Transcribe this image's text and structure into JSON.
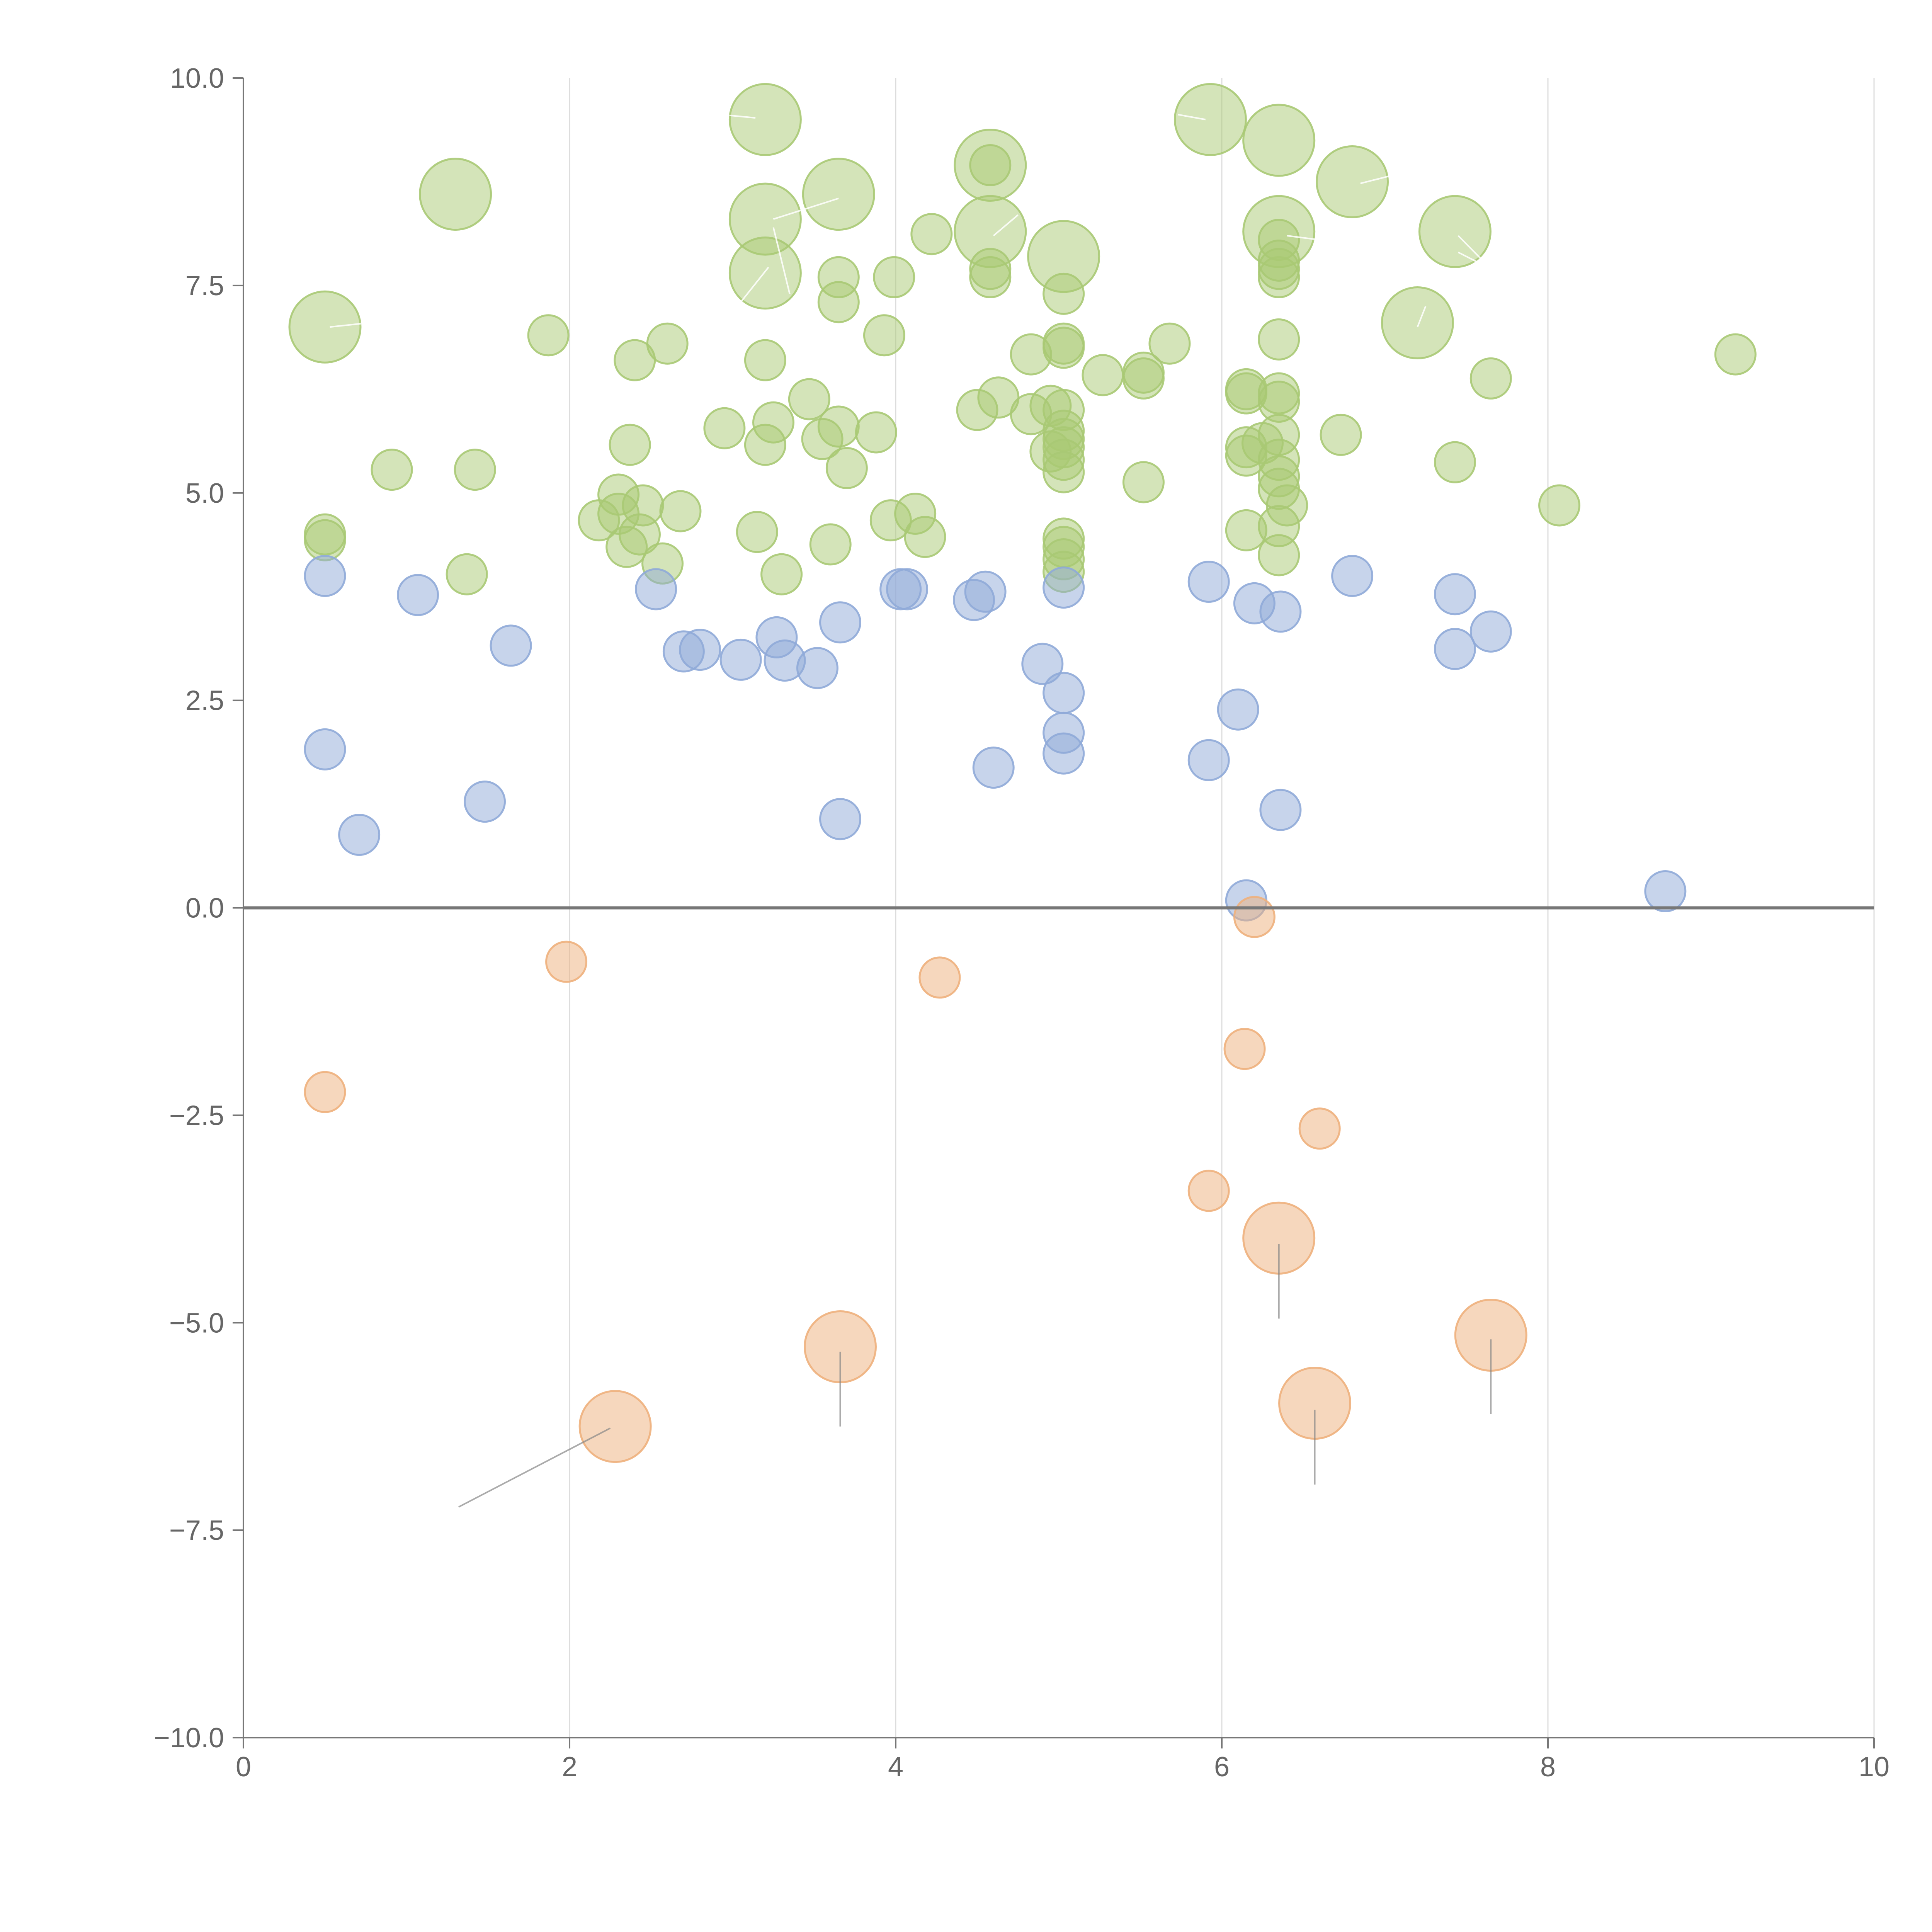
{
  "chart_data": {
    "type": "scatter",
    "title": "",
    "xlabel": "",
    "ylabel": "",
    "xlim": [
      0,
      10
    ],
    "ylim": [
      -10,
      10
    ],
    "xticks": [
      0,
      2,
      4,
      6,
      8,
      10
    ],
    "yticks": [
      -10,
      -7.5,
      -5,
      -2.5,
      0,
      2.5,
      5,
      7.5,
      10
    ],
    "xtick_labels": [
      "0",
      "2",
      "4",
      "6",
      "8",
      "10"
    ],
    "ytick_labels": [
      "−10.0",
      "−7.5",
      "−5.0",
      "−2.5",
      "0.0",
      "2.5",
      "5.0",
      "7.5",
      "10.0"
    ],
    "grid": {
      "x": true,
      "y": false
    },
    "reference_line": {
      "y": 0
    },
    "bubble_sizes": {
      "small": 1,
      "large": 2
    },
    "series": [
      {
        "name": "green",
        "color": "#a9c974",
        "points": [
          {
            "x": 3.2,
            "y": 9.5,
            "s": 2
          },
          {
            "x": 5.93,
            "y": 9.5,
            "s": 2
          },
          {
            "x": 6.35,
            "y": 9.25,
            "s": 2
          },
          {
            "x": 1.3,
            "y": 8.6,
            "s": 2
          },
          {
            "x": 3.65,
            "y": 8.6,
            "s": 2
          },
          {
            "x": 4.58,
            "y": 8.95,
            "s": 2
          },
          {
            "x": 4.58,
            "y": 8.95,
            "s": 1
          },
          {
            "x": 6.8,
            "y": 8.75,
            "s": 2
          },
          {
            "x": 3.2,
            "y": 8.3,
            "s": 2
          },
          {
            "x": 4.58,
            "y": 8.15,
            "s": 2
          },
          {
            "x": 6.35,
            "y": 8.15,
            "s": 2
          },
          {
            "x": 7.43,
            "y": 8.15,
            "s": 2
          },
          {
            "x": 5.03,
            "y": 7.85,
            "s": 2
          },
          {
            "x": 3.2,
            "y": 7.65,
            "s": 2
          },
          {
            "x": 0.5,
            "y": 7.0,
            "s": 2
          },
          {
            "x": 7.2,
            "y": 7.05,
            "s": 2
          },
          {
            "x": 4.22,
            "y": 8.12,
            "s": 1
          },
          {
            "x": 6.35,
            "y": 8.05,
            "s": 1
          },
          {
            "x": 3.65,
            "y": 7.6,
            "s": 1
          },
          {
            "x": 3.99,
            "y": 7.6,
            "s": 1
          },
          {
            "x": 4.58,
            "y": 7.6,
            "s": 1
          },
          {
            "x": 4.58,
            "y": 7.7,
            "s": 1
          },
          {
            "x": 6.35,
            "y": 7.6,
            "s": 1
          },
          {
            "x": 6.35,
            "y": 7.7,
            "s": 1
          },
          {
            "x": 6.35,
            "y": 7.8,
            "s": 1
          },
          {
            "x": 5.03,
            "y": 7.4,
            "s": 1
          },
          {
            "x": 3.65,
            "y": 7.3,
            "s": 1
          },
          {
            "x": 1.87,
            "y": 6.9,
            "s": 1
          },
          {
            "x": 3.93,
            "y": 6.9,
            "s": 1
          },
          {
            "x": 2.6,
            "y": 6.8,
            "s": 1
          },
          {
            "x": 5.03,
            "y": 6.8,
            "s": 1
          },
          {
            "x": 5.03,
            "y": 6.75,
            "s": 1
          },
          {
            "x": 5.68,
            "y": 6.8,
            "s": 1
          },
          {
            "x": 6.35,
            "y": 6.85,
            "s": 1
          },
          {
            "x": 9.15,
            "y": 6.67,
            "s": 1
          },
          {
            "x": 4.83,
            "y": 6.67,
            "s": 1
          },
          {
            "x": 2.4,
            "y": 6.6,
            "s": 1
          },
          {
            "x": 3.2,
            "y": 6.6,
            "s": 1
          },
          {
            "x": 5.27,
            "y": 6.42,
            "s": 1
          },
          {
            "x": 5.52,
            "y": 6.45,
            "s": 1
          },
          {
            "x": 5.52,
            "y": 6.38,
            "s": 1
          },
          {
            "x": 7.65,
            "y": 6.38,
            "s": 1
          },
          {
            "x": 6.15,
            "y": 6.25,
            "s": 1
          },
          {
            "x": 6.15,
            "y": 6.2,
            "s": 1
          },
          {
            "x": 6.35,
            "y": 6.2,
            "s": 1
          },
          {
            "x": 6.35,
            "y": 6.1,
            "s": 1
          },
          {
            "x": 3.47,
            "y": 6.13,
            "s": 1
          },
          {
            "x": 4.63,
            "y": 6.15,
            "s": 1
          },
          {
            "x": 4.5,
            "y": 6.0,
            "s": 1
          },
          {
            "x": 4.95,
            "y": 6.05,
            "s": 1
          },
          {
            "x": 5.03,
            "y": 6.0,
            "s": 1
          },
          {
            "x": 4.83,
            "y": 5.95,
            "s": 1
          },
          {
            "x": 3.25,
            "y": 5.85,
            "s": 1
          },
          {
            "x": 2.95,
            "y": 5.78,
            "s": 1
          },
          {
            "x": 3.65,
            "y": 5.8,
            "s": 1
          },
          {
            "x": 3.88,
            "y": 5.73,
            "s": 1
          },
          {
            "x": 6.35,
            "y": 5.7,
            "s": 1
          },
          {
            "x": 6.73,
            "y": 5.7,
            "s": 1
          },
          {
            "x": 5.03,
            "y": 5.75,
            "s": 1
          },
          {
            "x": 5.03,
            "y": 5.65,
            "s": 1
          },
          {
            "x": 5.03,
            "y": 5.55,
            "s": 1
          },
          {
            "x": 3.55,
            "y": 5.65,
            "s": 1
          },
          {
            "x": 2.37,
            "y": 5.58,
            "s": 1
          },
          {
            "x": 3.2,
            "y": 5.58,
            "s": 1
          },
          {
            "x": 6.25,
            "y": 5.6,
            "s": 1
          },
          {
            "x": 6.15,
            "y": 5.55,
            "s": 1
          },
          {
            "x": 6.15,
            "y": 5.45,
            "s": 1
          },
          {
            "x": 4.95,
            "y": 5.5,
            "s": 1
          },
          {
            "x": 5.03,
            "y": 5.4,
            "s": 1
          },
          {
            "x": 6.35,
            "y": 5.4,
            "s": 1
          },
          {
            "x": 7.43,
            "y": 5.37,
            "s": 1
          },
          {
            "x": 3.7,
            "y": 5.3,
            "s": 1
          },
          {
            "x": 5.03,
            "y": 5.25,
            "s": 1
          },
          {
            "x": 0.91,
            "y": 5.28,
            "s": 1
          },
          {
            "x": 1.42,
            "y": 5.28,
            "s": 1
          },
          {
            "x": 6.35,
            "y": 5.2,
            "s": 1
          },
          {
            "x": 5.52,
            "y": 5.13,
            "s": 1
          },
          {
            "x": 6.35,
            "y": 5.05,
            "s": 1
          },
          {
            "x": 2.3,
            "y": 4.98,
            "s": 1
          },
          {
            "x": 2.45,
            "y": 4.85,
            "s": 1
          },
          {
            "x": 6.4,
            "y": 4.85,
            "s": 1
          },
          {
            "x": 8.07,
            "y": 4.85,
            "s": 1
          },
          {
            "x": 2.3,
            "y": 4.75,
            "s": 1
          },
          {
            "x": 2.18,
            "y": 4.67,
            "s": 1
          },
          {
            "x": 2.68,
            "y": 4.78,
            "s": 1
          },
          {
            "x": 3.97,
            "y": 4.67,
            "s": 1
          },
          {
            "x": 4.12,
            "y": 4.75,
            "s": 1
          },
          {
            "x": 6.35,
            "y": 4.6,
            "s": 1
          },
          {
            "x": 3.15,
            "y": 4.53,
            "s": 1
          },
          {
            "x": 6.15,
            "y": 4.55,
            "s": 1
          },
          {
            "x": 0.5,
            "y": 4.5,
            "s": 1
          },
          {
            "x": 0.5,
            "y": 4.43,
            "s": 1
          },
          {
            "x": 2.43,
            "y": 4.5,
            "s": 1
          },
          {
            "x": 4.18,
            "y": 4.47,
            "s": 1
          },
          {
            "x": 5.03,
            "y": 4.45,
            "s": 1
          },
          {
            "x": 3.6,
            "y": 4.38,
            "s": 1
          },
          {
            "x": 2.35,
            "y": 4.35,
            "s": 1
          },
          {
            "x": 5.03,
            "y": 4.35,
            "s": 1
          },
          {
            "x": 6.35,
            "y": 4.25,
            "s": 1
          },
          {
            "x": 5.03,
            "y": 4.2,
            "s": 1
          },
          {
            "x": 2.57,
            "y": 4.15,
            "s": 1
          },
          {
            "x": 5.03,
            "y": 4.05,
            "s": 1
          },
          {
            "x": 1.37,
            "y": 4.02,
            "s": 1
          },
          {
            "x": 3.3,
            "y": 4.02,
            "s": 1
          }
        ]
      },
      {
        "name": "blue",
        "color": "#8faad8",
        "points": [
          {
            "x": 0.5,
            "y": 4.0,
            "s": 1
          },
          {
            "x": 1.07,
            "y": 3.77,
            "s": 1
          },
          {
            "x": 1.64,
            "y": 3.16,
            "s": 1
          },
          {
            "x": 2.53,
            "y": 3.84,
            "s": 1
          },
          {
            "x": 2.7,
            "y": 3.09,
            "s": 1
          },
          {
            "x": 2.8,
            "y": 3.11,
            "s": 1
          },
          {
            "x": 3.05,
            "y": 2.99,
            "s": 1
          },
          {
            "x": 3.27,
            "y": 3.26,
            "s": 1
          },
          {
            "x": 3.32,
            "y": 2.98,
            "s": 1
          },
          {
            "x": 3.52,
            "y": 2.89,
            "s": 1
          },
          {
            "x": 3.66,
            "y": 3.44,
            "s": 1
          },
          {
            "x": 4.03,
            "y": 3.84,
            "s": 1
          },
          {
            "x": 4.07,
            "y": 3.84,
            "s": 1
          },
          {
            "x": 4.48,
            "y": 3.71,
            "s": 1
          },
          {
            "x": 4.55,
            "y": 3.81,
            "s": 1
          },
          {
            "x": 5.03,
            "y": 3.86,
            "s": 1
          },
          {
            "x": 4.9,
            "y": 2.94,
            "s": 1
          },
          {
            "x": 5.03,
            "y": 2.59,
            "s": 1
          },
          {
            "x": 5.03,
            "y": 2.11,
            "s": 1
          },
          {
            "x": 5.03,
            "y": 1.86,
            "s": 1
          },
          {
            "x": 4.6,
            "y": 1.69,
            "s": 1
          },
          {
            "x": 5.92,
            "y": 3.93,
            "s": 1
          },
          {
            "x": 6.2,
            "y": 3.67,
            "s": 1
          },
          {
            "x": 6.36,
            "y": 3.57,
            "s": 1
          },
          {
            "x": 6.8,
            "y": 4.0,
            "s": 1
          },
          {
            "x": 7.43,
            "y": 3.78,
            "s": 1
          },
          {
            "x": 7.43,
            "y": 3.12,
            "s": 1
          },
          {
            "x": 7.65,
            "y": 3.33,
            "s": 1
          },
          {
            "x": 6.1,
            "y": 2.39,
            "s": 1
          },
          {
            "x": 5.92,
            "y": 1.78,
            "s": 1
          },
          {
            "x": 6.36,
            "y": 1.18,
            "s": 1
          },
          {
            "x": 6.15,
            "y": 0.09,
            "s": 1
          },
          {
            "x": 8.72,
            "y": 0.2,
            "s": 1
          },
          {
            "x": 0.5,
            "y": 1.91,
            "s": 1
          },
          {
            "x": 0.71,
            "y": 0.88,
            "s": 1
          },
          {
            "x": 1.48,
            "y": 1.28,
            "s": 1
          },
          {
            "x": 3.66,
            "y": 1.07,
            "s": 1
          }
        ]
      },
      {
        "name": "orange",
        "color": "#eeb07c",
        "points": [
          {
            "x": 1.98,
            "y": -0.65,
            "s": 1
          },
          {
            "x": 4.27,
            "y": -0.84,
            "s": 1
          },
          {
            "x": 6.2,
            "y": -0.11,
            "s": 1
          },
          {
            "x": 6.14,
            "y": -1.7,
            "s": 1
          },
          {
            "x": 0.5,
            "y": -2.22,
            "s": 1
          },
          {
            "x": 6.6,
            "y": -2.66,
            "s": 1
          },
          {
            "x": 5.92,
            "y": -3.41,
            "s": 1
          },
          {
            "x": 6.35,
            "y": -3.98,
            "s": 2
          },
          {
            "x": 3.66,
            "y": -5.29,
            "s": 2
          },
          {
            "x": 7.65,
            "y": -5.15,
            "s": 2
          },
          {
            "x": 6.57,
            "y": -5.97,
            "s": 2
          },
          {
            "x": 2.28,
            "y": -6.25,
            "s": 2
          }
        ]
      }
    ],
    "label_lines": [
      {
        "from": [
          6.35,
          -4.05
        ],
        "to": [
          6.35,
          -4.95
        ],
        "color": "#888888"
      },
      {
        "from": [
          3.66,
          -5.35
        ],
        "to": [
          3.66,
          -6.25
        ],
        "color": "#888888"
      },
      {
        "from": [
          7.65,
          -5.2
        ],
        "to": [
          7.65,
          -6.1
        ],
        "color": "#888888"
      },
      {
        "from": [
          6.57,
          -6.05
        ],
        "to": [
          6.57,
          -6.95
        ],
        "color": "#888888"
      },
      {
        "from": [
          2.25,
          -6.27
        ],
        "to": [
          1.32,
          -7.22
        ],
        "color": "#888888"
      },
      {
        "from": [
          0.53,
          7.0
        ],
        "to": [
          0.72,
          7.04
        ],
        "color": "#ffffff"
      },
      {
        "from": [
          3.14,
          9.52
        ],
        "to": [
          2.98,
          9.55
        ],
        "color": "#ffffff"
      },
      {
        "from": [
          5.9,
          9.5
        ],
        "to": [
          5.73,
          9.56
        ],
        "color": "#ffffff"
      },
      {
        "from": [
          6.85,
          8.73
        ],
        "to": [
          7.05,
          8.83
        ],
        "color": "#ffffff"
      },
      {
        "from": [
          3.25,
          8.3
        ],
        "to": [
          3.65,
          8.55
        ],
        "color": "#ffffff"
      },
      {
        "from": [
          3.22,
          7.72
        ],
        "to": [
          3.05,
          7.3
        ],
        "color": "#ffffff"
      },
      {
        "from": [
          3.25,
          8.2
        ],
        "to": [
          3.35,
          7.4
        ],
        "color": "#ffffff"
      },
      {
        "from": [
          4.6,
          8.1
        ],
        "to": [
          4.75,
          8.35
        ],
        "color": "#ffffff"
      },
      {
        "from": [
          6.4,
          8.1
        ],
        "to": [
          6.6,
          8.05
        ],
        "color": "#ffffff"
      },
      {
        "from": [
          7.45,
          8.1
        ],
        "to": [
          7.6,
          7.8
        ],
        "color": "#ffffff"
      },
      {
        "from": [
          7.45,
          7.9
        ],
        "to": [
          7.6,
          7.75
        ],
        "color": "#ffffff"
      },
      {
        "from": [
          7.2,
          7.0
        ],
        "to": [
          7.25,
          7.25
        ],
        "color": "#ffffff"
      }
    ]
  }
}
